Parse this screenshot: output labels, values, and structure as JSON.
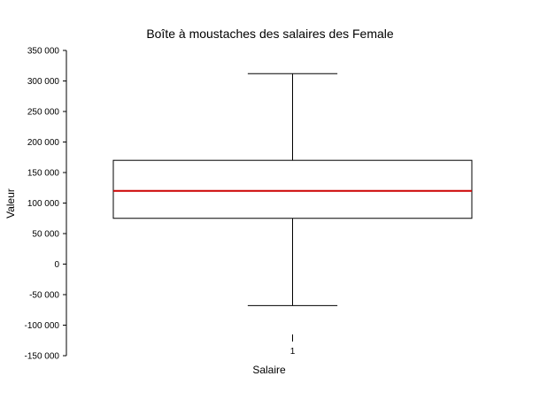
{
  "chart_data": {
    "type": "box",
    "title": "Boîte à moustaches des salaires des Female",
    "xlabel": "Salaire",
    "ylabel": "Valeur",
    "ylim": [
      -150000,
      350000
    ],
    "yticks": [
      350000,
      300000,
      250000,
      200000,
      150000,
      100000,
      50000,
      0,
      -50000,
      -100000,
      -150000
    ],
    "ytick_labels": [
      "350 000",
      "300 000",
      "250 000",
      "200 000",
      "150 000",
      "100 000",
      "50 000",
      "0",
      "-50 000",
      "-100 000",
      "-150 000"
    ],
    "categories": [
      "1"
    ],
    "boxes": [
      {
        "category": "1",
        "whisker_low": -68000,
        "q1": 75000,
        "median": 120000,
        "q3": 170000,
        "whisker_high": 312000
      }
    ],
    "grid": false,
    "colors": {
      "box_stroke": "#000000",
      "median_line": "#cc0000",
      "whisker": "#000000"
    }
  }
}
